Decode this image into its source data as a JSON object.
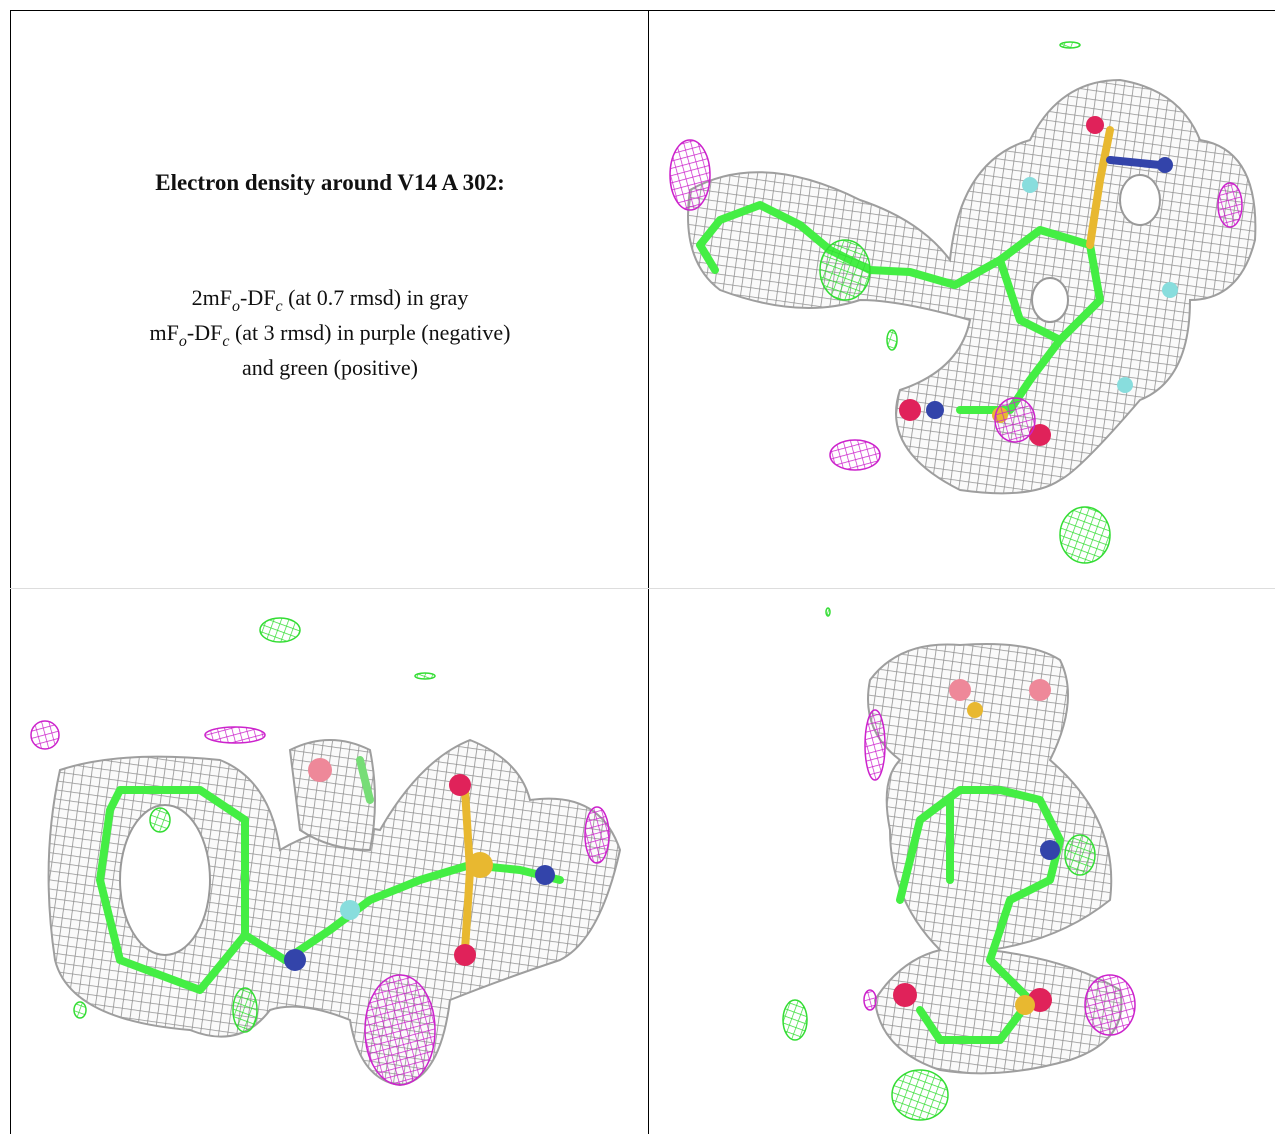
{
  "caption": {
    "title": "Electron density around V14 A 302:",
    "lines": [
      [
        "2mF",
        "o",
        "-DF",
        "c",
        " (at 0.7 rmsd) in gray"
      ],
      [
        "mF",
        "o",
        "-DF",
        "c",
        " (at 3 rmsd) in purple (negative)"
      ],
      [
        "and green (positive)"
      ]
    ]
  }
}
